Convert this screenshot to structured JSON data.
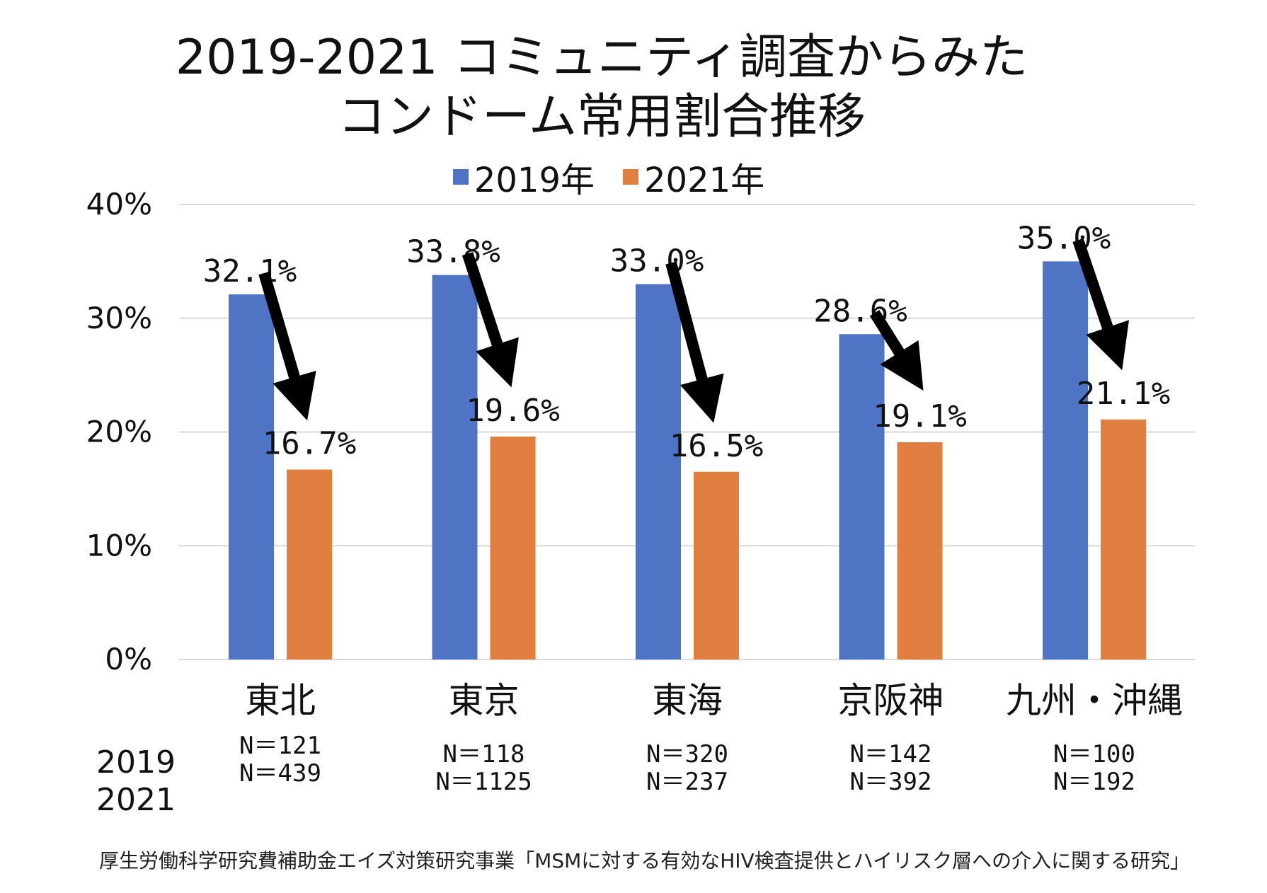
{
  "title_line1": "2019-2021 コミュニティ調査からみた",
  "title_line2": "コンドーム常用割合推移",
  "colors": {
    "series_2019": "#4f74c4",
    "series_2021": "#e07f40",
    "grid": "#d9d9d9",
    "arrow": "#000000"
  },
  "n_row_labels": [
    "2019",
    "2021"
  ],
  "sample_sizes": [
    {
      "n2019": "N＝121",
      "n2021": "N＝439"
    },
    {
      "n2019": "N＝118",
      "n2021": "N＝1125"
    },
    {
      "n2019": "N＝320",
      "n2021": "N＝237"
    },
    {
      "n2019": "N＝142",
      "n2021": "N＝392"
    },
    {
      "n2019": "N＝100",
      "n2021": "N＝192"
    }
  ],
  "footnote": "厚生労働科学研究費補助金エイズ対策研究事業「MSMに対する有効なHIV検査提供とハイリスク層への介入に関する研究」",
  "chart_data": {
    "type": "bar",
    "categories": [
      "東北",
      "東京",
      "東海",
      "京阪神",
      "九州・沖縄"
    ],
    "series": [
      {
        "name": "2019年",
        "values": [
          32.1,
          33.8,
          33.0,
          28.6,
          35.0
        ],
        "labels": [
          "32.1%",
          "33.8%",
          "33.0%",
          "28.6%",
          "35.0%"
        ]
      },
      {
        "name": "2021年",
        "values": [
          16.7,
          19.6,
          16.5,
          19.1,
          21.1
        ],
        "labels": [
          "16.7%",
          "19.6%",
          "16.5%",
          "19.1%",
          "21.1%"
        ]
      }
    ],
    "ylim": [
      0,
      40
    ],
    "yticks": [
      0,
      10,
      20,
      30,
      40
    ],
    "ytick_labels": [
      "0%",
      "10%",
      "20%",
      "30%",
      "40%"
    ],
    "grid": true,
    "legend_position": "top",
    "annotations": "downward arrows from 2019 to 2021 values"
  }
}
